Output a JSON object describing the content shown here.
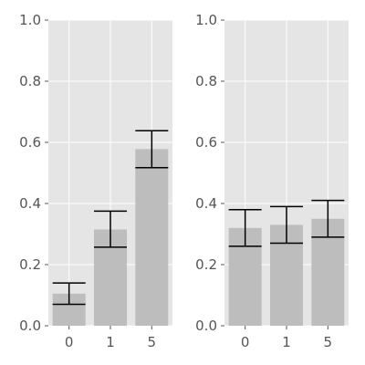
{
  "chart_data": [
    {
      "type": "bar",
      "categories": [
        "0",
        "1",
        "5"
      ],
      "values": [
        0.105,
        0.315,
        0.578
      ],
      "error_low": [
        0.07,
        0.257,
        0.517
      ],
      "error_high": [
        0.14,
        0.375,
        0.638
      ],
      "yticks": [
        "0.0",
        "0.2",
        "0.4",
        "0.6",
        "0.8",
        "1.0"
      ],
      "ylim": [
        0,
        1
      ],
      "grid": true,
      "bar_color": "#bdbdbd",
      "background_color": "#e5e5e5",
      "grid_color": "#ffffff",
      "error_color": "#000000",
      "title": "",
      "xlabel": "",
      "ylabel": ""
    },
    {
      "type": "bar",
      "categories": [
        "0",
        "1",
        "5"
      ],
      "values": [
        0.32,
        0.33,
        0.35
      ],
      "error_low": [
        0.26,
        0.27,
        0.29
      ],
      "error_high": [
        0.38,
        0.39,
        0.41
      ],
      "yticks": [
        "0.0",
        "0.2",
        "0.4",
        "0.6",
        "0.8",
        "1.0"
      ],
      "ylim": [
        0,
        1
      ],
      "grid": true,
      "bar_color": "#bdbdbd",
      "background_color": "#e5e5e5",
      "grid_color": "#ffffff",
      "error_color": "#000000",
      "title": "",
      "xlabel": "",
      "ylabel": ""
    }
  ]
}
